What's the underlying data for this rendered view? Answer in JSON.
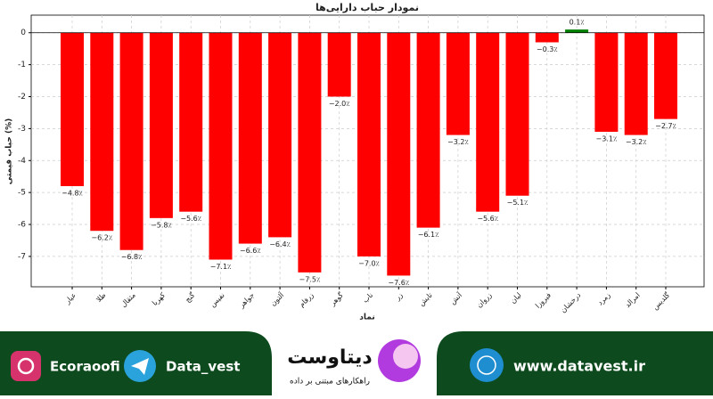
{
  "chart_data": {
    "type": "bar",
    "title": "نمودار حباب دارایی‌ها",
    "x_label": "نماد",
    "y_label": "حباب قیمتی (%)",
    "categories": [
      "عیار",
      "طلا",
      "مثقال",
      "کهربا",
      "گنج",
      "نفیس",
      "جواهر",
      "آلتون",
      "زرفام",
      "گوهر",
      "ناب",
      "زر",
      "تابش",
      "آتش",
      "زروان",
      "لیان",
      "فیروزا",
      "درخشان",
      "زمرد",
      "امرالد",
      "گلدیس"
    ],
    "values": [
      -4.8,
      -6.2,
      -6.8,
      -5.8,
      -5.6,
      -7.1,
      -6.6,
      -6.4,
      -7.5,
      -2.0,
      -7.0,
      -7.6,
      -6.1,
      -3.2,
      -5.6,
      -5.1,
      -0.3,
      0.1,
      -3.1,
      -3.2,
      -2.7
    ],
    "value_labels": [
      "−4.8٪",
      "−6.2٪",
      "−6.8٪",
      "−5.8٪",
      "−5.6٪",
      "−7.1٪",
      "−6.6٪",
      "−6.4٪",
      "−7.5٪",
      "−2.0٪",
      "−7.0٪",
      "−7.6٪",
      "−6.1٪",
      "−3.2٪",
      "−5.6٪",
      "−5.1٪",
      "−0.3٪",
      "0.1٪",
      "−3.1٪",
      "−3.2٪",
      "−2.7٪"
    ],
    "colors": [
      "#ff0000",
      "#ff0000",
      "#ff0000",
      "#ff0000",
      "#ff0000",
      "#ff0000",
      "#ff0000",
      "#ff0000",
      "#ff0000",
      "#ff0000",
      "#ff0000",
      "#ff0000",
      "#ff0000",
      "#ff0000",
      "#ff0000",
      "#ff0000",
      "#ff0000",
      "#008000",
      "#ff0000",
      "#ff0000",
      "#ff0000"
    ],
    "ylim": [
      -7.95,
      0.55
    ],
    "yticks": [
      0,
      -1,
      -2,
      -3,
      -4,
      -5,
      -6,
      -7
    ],
    "grid": true
  },
  "footer": {
    "instagram": "Ecoraoofi",
    "telegram": "Data_vest",
    "brand": "دیتاوست",
    "tagline": "راهکارهای مبتنی بر داده",
    "website": "www.datavest.ir"
  }
}
